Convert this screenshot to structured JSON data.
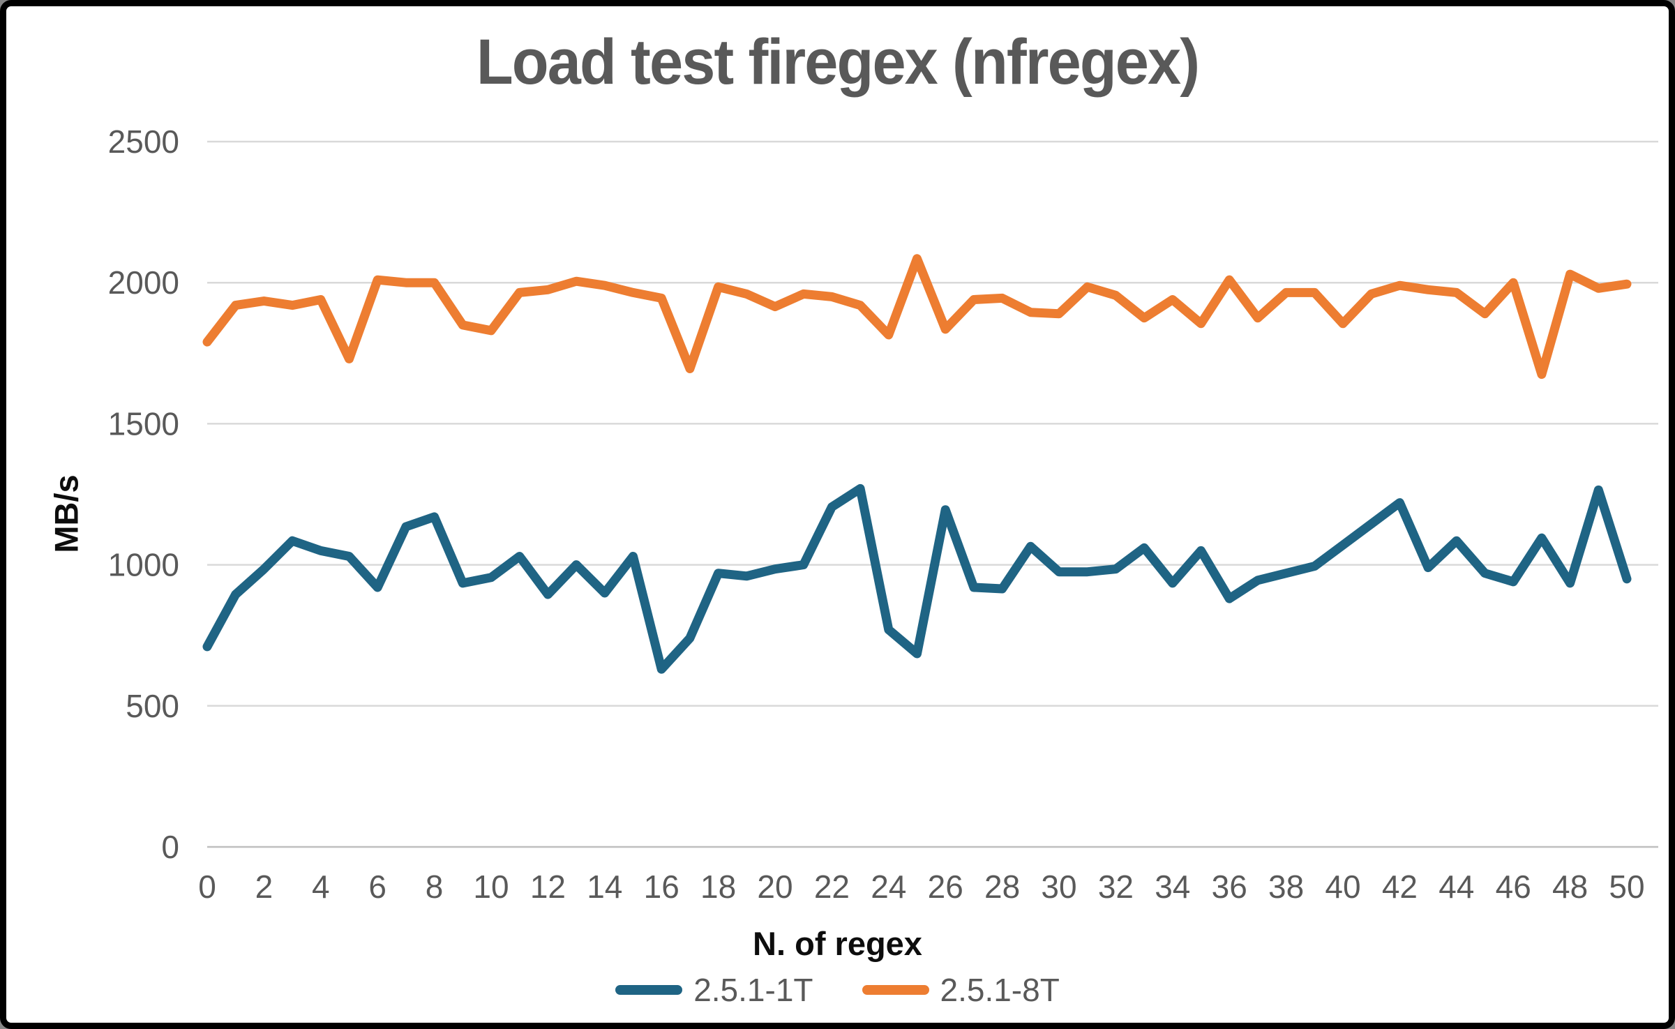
{
  "frame": {
    "background": "#ffffff",
    "border_color": "#000000"
  },
  "chart_data": {
    "type": "line",
    "title": "Load test firegex (nfregex)",
    "xlabel": "N. of regex",
    "ylabel": "MB/s",
    "x": [
      0,
      1,
      2,
      3,
      4,
      5,
      6,
      7,
      8,
      9,
      10,
      11,
      12,
      13,
      14,
      15,
      16,
      17,
      18,
      19,
      20,
      21,
      22,
      23,
      24,
      25,
      26,
      27,
      28,
      29,
      30,
      31,
      32,
      33,
      34,
      35,
      36,
      37,
      38,
      39,
      40,
      41,
      42,
      43,
      44,
      45,
      46,
      47,
      48,
      49,
      50
    ],
    "series": [
      {
        "name": "2.5.1-1T",
        "color": "#1F6484",
        "values": [
          710,
          895,
          985,
          1085,
          1050,
          1030,
          920,
          1135,
          1170,
          935,
          955,
          1030,
          895,
          1000,
          900,
          1030,
          630,
          740,
          970,
          960,
          985,
          1000,
          1205,
          1270,
          770,
          685,
          1195,
          920,
          915,
          1065,
          975,
          975,
          985,
          1060,
          935,
          1050,
          880,
          945,
          970,
          995,
          1070,
          1145,
          1220,
          990,
          1085,
          970,
          940,
          1095,
          935,
          1265,
          950
        ]
      },
      {
        "name": "2.5.1-8T",
        "color": "#ED7D31",
        "values": [
          1790,
          1920,
          1935,
          1920,
          1940,
          1730,
          2010,
          2000,
          2000,
          1850,
          1830,
          1965,
          1975,
          2005,
          1990,
          1965,
          1945,
          1695,
          1985,
          1960,
          1915,
          1960,
          1950,
          1920,
          1815,
          2085,
          1835,
          1940,
          1945,
          1895,
          1890,
          1985,
          1955,
          1875,
          1940,
          1855,
          2010,
          1875,
          1965,
          1965,
          1855,
          1960,
          1990,
          1975,
          1965,
          1890,
          2000,
          1675,
          2030,
          1980,
          1995
        ]
      }
    ],
    "ylim": [
      0,
      2500
    ],
    "y_ticks": [
      0,
      500,
      1000,
      1500,
      2000,
      2500
    ],
    "x_ticks": [
      0,
      2,
      4,
      6,
      8,
      10,
      12,
      14,
      16,
      18,
      20,
      22,
      24,
      26,
      28,
      30,
      32,
      34,
      36,
      38,
      40,
      42,
      44,
      46,
      48,
      50
    ],
    "grid": "horizontal",
    "legend_position": "bottom",
    "tick_color": "#595959",
    "gridline_color": "#D9D9D9",
    "axis_line_color": "#BFBFBF"
  }
}
